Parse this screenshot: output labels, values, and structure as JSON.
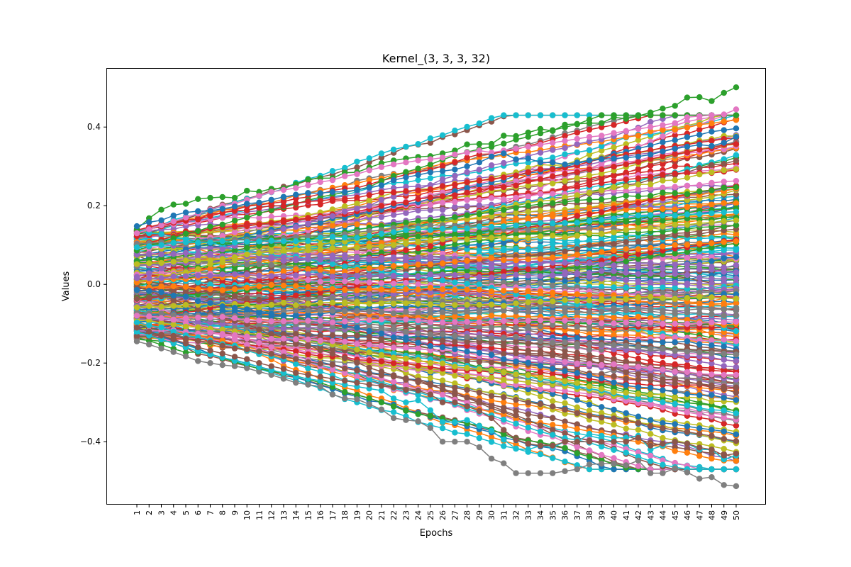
{
  "chart_data": {
    "type": "line",
    "title": "Kernel_(3, 3, 3, 32)",
    "xlabel": "Epochs",
    "ylabel": "Values",
    "x": [
      1,
      2,
      3,
      4,
      5,
      6,
      7,
      8,
      9,
      10,
      11,
      12,
      13,
      14,
      15,
      16,
      17,
      18,
      19,
      20,
      21,
      22,
      23,
      24,
      25,
      26,
      27,
      28,
      29,
      30,
      31,
      32,
      33,
      34,
      35,
      36,
      37,
      38,
      39,
      40,
      41,
      42,
      43,
      44,
      45,
      46,
      47,
      48,
      49,
      50
    ],
    "xticks": [
      "1",
      "2",
      "3",
      "4",
      "5",
      "6",
      "7",
      "8",
      "9",
      "10",
      "11",
      "12",
      "13",
      "14",
      "15",
      "16",
      "17",
      "18",
      "19",
      "20",
      "21",
      "22",
      "23",
      "24",
      "25",
      "26",
      "27",
      "28",
      "29",
      "30",
      "31",
      "32",
      "33",
      "34",
      "35",
      "36",
      "37",
      "38",
      "39",
      "40",
      "41",
      "42",
      "43",
      "44",
      "45",
      "46",
      "47",
      "48",
      "49",
      "50"
    ],
    "ylim": [
      -0.56,
      0.55
    ],
    "yticks": [
      -0.4,
      -0.2,
      0.0,
      0.2,
      0.4
    ],
    "ytick_labels": [
      "−0.4",
      "−0.2",
      "0.0",
      "0.2",
      "0.4"
    ],
    "grid": false,
    "legend": false,
    "marker": "circle",
    "palette": [
      "#1f77b4",
      "#ff7f0e",
      "#2ca02c",
      "#d62728",
      "#9467bd",
      "#8c564b",
      "#e377c2",
      "#7f7f7f",
      "#bcbd22",
      "#17becf"
    ],
    "series_count": 864,
    "highlighted_series": [
      {
        "color": "#2ca02c",
        "values": [
          0.14,
          0.168,
          0.19,
          0.203,
          0.205,
          0.217,
          0.22,
          0.222,
          0.22,
          0.238,
          0.235,
          0.243,
          0.244,
          0.255,
          0.267,
          0.27,
          0.27,
          0.284,
          0.285,
          0.297,
          0.308,
          0.315,
          0.32,
          0.324,
          0.326,
          0.333,
          0.34,
          0.356,
          0.357,
          0.357,
          0.378,
          0.377,
          0.386,
          0.395,
          0.39,
          0.406,
          0.408,
          0.41,
          0.41,
          0.425,
          0.421,
          0.428,
          0.437,
          0.447,
          0.454,
          0.475,
          0.476,
          0.466,
          0.487,
          0.501
        ]
      },
      {
        "color": "#e377c2",
        "values": [
          0.13,
          0.14,
          0.15,
          0.16,
          0.17,
          0.18,
          0.19,
          0.2,
          0.205,
          0.215,
          0.225,
          0.235,
          0.24,
          0.245,
          0.252,
          0.26,
          0.265,
          0.275,
          0.28,
          0.29,
          0.298,
          0.305,
          0.31,
          0.315,
          0.318,
          0.322,
          0.33,
          0.335,
          0.34,
          0.335,
          0.34,
          0.345,
          0.35,
          0.355,
          0.36,
          0.365,
          0.37,
          0.375,
          0.378,
          0.385,
          0.39,
          0.395,
          0.4,
          0.405,
          0.41,
          0.425,
          0.428,
          0.43,
          0.432,
          0.445
        ]
      },
      {
        "color": "#1f77b4",
        "values": [
          0.148,
          0.158,
          0.163,
          0.175,
          0.183,
          0.186,
          0.187,
          0.192,
          0.198,
          0.205,
          0.208,
          0.215,
          0.222,
          0.228,
          0.232,
          0.232,
          0.235,
          0.235,
          0.24,
          0.246,
          0.252,
          0.265,
          0.272,
          0.278,
          0.285,
          0.288,
          0.292,
          0.3,
          0.31,
          0.325,
          0.333,
          0.318,
          0.32,
          0.31,
          0.31,
          0.305,
          0.31,
          0.315,
          0.318,
          0.32,
          0.322,
          0.325,
          0.33,
          0.338,
          0.345,
          0.35,
          0.355,
          0.352,
          0.36,
          0.375
        ]
      },
      {
        "color": "#7f7f7f",
        "values": [
          -0.145,
          -0.153,
          -0.163,
          -0.172,
          -0.183,
          -0.195,
          -0.2,
          -0.205,
          -0.208,
          -0.213,
          -0.222,
          -0.23,
          -0.24,
          -0.25,
          -0.255,
          -0.26,
          -0.28,
          -0.29,
          -0.292,
          -0.305,
          -0.318,
          -0.34,
          -0.345,
          -0.348,
          -0.365,
          -0.4,
          -0.4,
          -0.4,
          -0.414,
          -0.443,
          -0.455,
          -0.48,
          -0.48,
          -0.48,
          -0.48,
          -0.475,
          -0.47,
          -0.458,
          -0.456,
          -0.456,
          -0.46,
          -0.448,
          -0.48,
          -0.48,
          -0.468,
          -0.478,
          -0.494,
          -0.49,
          -0.51,
          -0.513
        ]
      },
      {
        "color": "#17becf",
        "values": [
          -0.12,
          -0.13,
          -0.14,
          -0.15,
          -0.16,
          -0.17,
          -0.178,
          -0.186,
          -0.194,
          -0.2,
          -0.21,
          -0.218,
          -0.225,
          -0.235,
          -0.24,
          -0.245,
          -0.25,
          -0.255,
          -0.26,
          -0.265,
          -0.27,
          -0.29,
          -0.3,
          -0.295,
          -0.32,
          -0.35,
          -0.35,
          -0.345,
          -0.36,
          -0.372,
          -0.395,
          -0.418,
          -0.42,
          -0.41,
          -0.415,
          -0.4,
          -0.4,
          -0.38,
          -0.385,
          -0.39,
          -0.39,
          -0.385,
          -0.42,
          -0.41,
          -0.4,
          -0.405,
          -0.42,
          -0.42,
          -0.445,
          -0.435
        ]
      },
      {
        "color": "#8c564b",
        "values": [
          -0.11,
          -0.12,
          -0.13,
          -0.14,
          -0.15,
          -0.16,
          -0.168,
          -0.176,
          -0.184,
          -0.19,
          -0.2,
          -0.208,
          -0.215,
          -0.225,
          -0.23,
          -0.235,
          -0.24,
          -0.245,
          -0.25,
          -0.255,
          -0.258,
          -0.262,
          -0.268,
          -0.27,
          -0.28,
          -0.3,
          -0.3,
          -0.31,
          -0.322,
          -0.34,
          -0.37,
          -0.395,
          -0.405,
          -0.41,
          -0.41,
          -0.4,
          -0.4,
          -0.4,
          -0.4,
          -0.4,
          -0.4,
          -0.39,
          -0.41,
          -0.405,
          -0.4,
          -0.405,
          -0.415,
          -0.42,
          -0.435,
          -0.43
        ]
      }
    ]
  }
}
